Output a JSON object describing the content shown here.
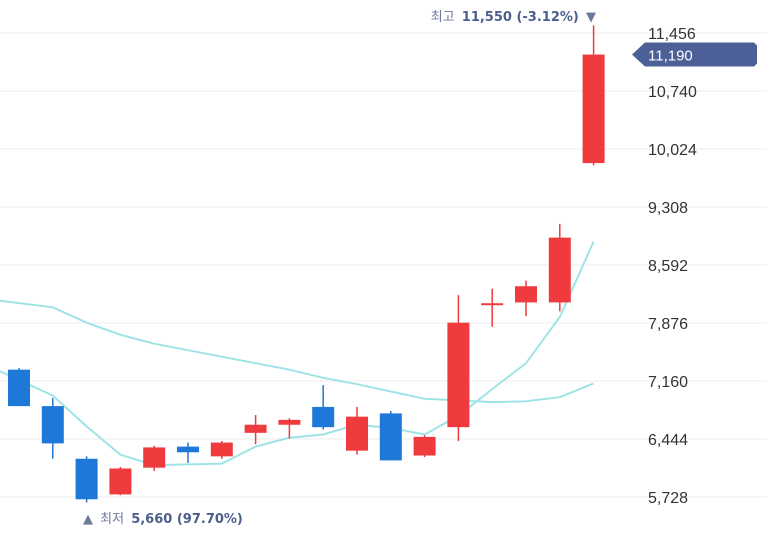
{
  "chart_data": {
    "type": "candlestick",
    "yticks": [
      "11,456",
      "10,740",
      "10,024",
      "9,308",
      "8,592",
      "7,876",
      "7,160",
      "6,444",
      "5,728"
    ],
    "ytick_values": [
      11456,
      10740,
      10024,
      9308,
      8592,
      7876,
      7160,
      6444,
      5728
    ],
    "ylim": [
      5600,
      11600
    ],
    "grid": true,
    "current_price": {
      "label": "11,190",
      "value": 11190
    },
    "high_marker": {
      "label": "최고",
      "value_text": "11,550 (-3.12%)",
      "arrow": "▼",
      "value": 11550
    },
    "low_marker": {
      "label": "최저",
      "value_text": "5,660 (97.70%)",
      "arrow": "▲",
      "value": 5660
    },
    "candles": [
      {
        "open": 7300,
        "high": 7320,
        "low": 6850,
        "close": 6850,
        "dir": "down"
      },
      {
        "open": 6850,
        "high": 6950,
        "low": 6200,
        "close": 6390,
        "dir": "down"
      },
      {
        "open": 6200,
        "high": 6230,
        "low": 5660,
        "close": 5700,
        "dir": "down"
      },
      {
        "open": 5760,
        "high": 6100,
        "low": 5750,
        "close": 6080,
        "dir": "up"
      },
      {
        "open": 6090,
        "high": 6360,
        "low": 6050,
        "close": 6340,
        "dir": "up"
      },
      {
        "open": 6350,
        "high": 6400,
        "low": 6150,
        "close": 6280,
        "dir": "down"
      },
      {
        "open": 6230,
        "high": 6420,
        "low": 6200,
        "close": 6400,
        "dir": "up"
      },
      {
        "open": 6520,
        "high": 6740,
        "low": 6380,
        "close": 6620,
        "dir": "up"
      },
      {
        "open": 6620,
        "high": 6700,
        "low": 6450,
        "close": 6680,
        "dir": "up"
      },
      {
        "open": 6840,
        "high": 7110,
        "low": 6560,
        "close": 6590,
        "dir": "down"
      },
      {
        "open": 6300,
        "high": 6840,
        "low": 6250,
        "close": 6720,
        "dir": "up"
      },
      {
        "open": 6760,
        "high": 6790,
        "low": 6180,
        "close": 6180,
        "dir": "down"
      },
      {
        "open": 6240,
        "high": 6490,
        "low": 6220,
        "close": 6470,
        "dir": "up"
      },
      {
        "open": 6590,
        "high": 8220,
        "low": 6420,
        "close": 7880,
        "dir": "up"
      },
      {
        "open": 8100,
        "high": 8300,
        "low": 7830,
        "close": 8120,
        "dir": "up"
      },
      {
        "open": 8130,
        "high": 8400,
        "low": 7960,
        "close": 8330,
        "dir": "up"
      },
      {
        "open": 8130,
        "high": 9100,
        "low": 8020,
        "close": 8930,
        "dir": "up"
      },
      {
        "open": 9850,
        "high": 11550,
        "low": 9820,
        "close": 11190,
        "dir": "up"
      }
    ],
    "moving_averages": [
      {
        "color": "#9fe3e6",
        "values": [
          7280,
          6980,
          6600,
          6250,
          6120,
          6130,
          6140,
          6350,
          6460,
          6500,
          6620,
          6580,
          6500,
          6730,
          7060,
          7380,
          7950,
          8880
        ]
      },
      {
        "color": "#9fe3e6",
        "values": [
          8150,
          8070,
          7880,
          7730,
          7620,
          7540,
          7460,
          7380,
          7300,
          7200,
          7120,
          7030,
          6940,
          6920,
          6900,
          6910,
          6960,
          7130
        ]
      }
    ],
    "colors": {
      "up": "#ef3b3e",
      "down": "#1e78d8",
      "price_tag": "#4c5f96"
    }
  }
}
